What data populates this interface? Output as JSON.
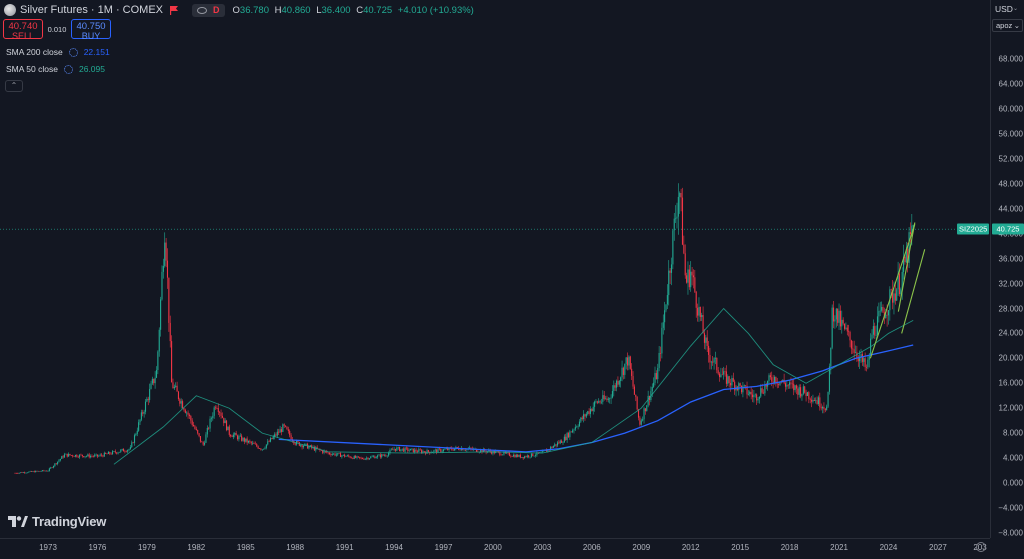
{
  "header": {
    "title": "Silver Futures · 1M · COMEX",
    "toggle_label": "D",
    "ohlc": [
      {
        "k": "O",
        "v": "36.780"
      },
      {
        "k": "H",
        "v": "40.860"
      },
      {
        "k": "L",
        "v": "36.400"
      },
      {
        "k": "C",
        "v": "40.725"
      },
      {
        "k": "",
        "v": "+4.010 (+10.93%)"
      }
    ]
  },
  "trade": {
    "sell_price": "40.740",
    "sell_label": "SELL",
    "spread": "0.010",
    "buy_price": "40.750",
    "buy_label": "BUY"
  },
  "indicators": [
    {
      "label": "SMA 200 close",
      "value": "22.151",
      "color": "#2962ff"
    },
    {
      "label": "SMA 50 close",
      "value": "26.095",
      "color": "#22ab94"
    }
  ],
  "price_axis": {
    "currency": "USD",
    "scale_select": "apoz",
    "ticks": [
      "68.000",
      "64.000",
      "60.000",
      "56.000",
      "52.000",
      "48.000",
      "44.000",
      "40.000",
      "36.000",
      "32.000",
      "28.000",
      "24.000",
      "20.000",
      "16.000",
      "12.000",
      "8.000",
      "4.000",
      "0.000",
      "−4.000",
      "−8.000"
    ],
    "symbol_tag": "SIZ2025",
    "last_price": "40.725"
  },
  "time_axis": {
    "labels": [
      "1973",
      "1976",
      "1979",
      "1982",
      "1985",
      "1988",
      "1991",
      "1994",
      "1997",
      "2000",
      "2003",
      "2006",
      "2009",
      "2012",
      "2015",
      "2018",
      "2021",
      "2024",
      "2027",
      "203"
    ]
  },
  "brand": {
    "name": "TradingView"
  },
  "colors": {
    "background": "#131722",
    "up": "#22ab94",
    "down": "#f23645",
    "sma200": "#2962ff",
    "sma50": "#22ab94",
    "trendline": "#8bc34a"
  },
  "chart_data": {
    "type": "line",
    "title": "",
    "ylim": [
      -10,
      72
    ],
    "xlim": [
      1971,
      2030
    ],
    "series": [
      {
        "name": "",
        "x": [
          1971,
          1973,
          1974,
          1976,
          1978,
          1979.6,
          1980.1,
          1980.5,
          1981.5,
          1982.4,
          1983.2,
          1984,
          1986,
          1987.3,
          1988,
          1990,
          1992,
          1993.5,
          1994,
          1996,
          1998,
          2000,
          2001.8,
          2003,
          2004.3,
          2006.3,
          2007,
          2008.2,
          2008.9,
          2010,
          2011.3,
          2011.7,
          2012,
          2013,
          2014,
          2015.9,
          2017,
          2018,
          2019,
          2020.3,
          2020.6,
          2021,
          2022.7,
          2023,
          2024,
          2024.8,
          2025.5
        ],
        "y": [
          1.6,
          2.0,
          4.5,
          4.3,
          5.5,
          18,
          42,
          16,
          11,
          6,
          13,
          8,
          5.5,
          9,
          6.5,
          4.8,
          3.9,
          4.5,
          5.5,
          5,
          5.6,
          5,
          4.2,
          4.8,
          7.0,
          13,
          13.5,
          20,
          9.5,
          18,
          48,
          32,
          34,
          21,
          17,
          13.8,
          17,
          15.5,
          14.5,
          12,
          28,
          26,
          18,
          24,
          29,
          33,
          40.725
        ]
      },
      {
        "name": "SMA 200 close",
        "x": [
          1987,
          2002,
          2004,
          2006,
          2008,
          2010,
          2012,
          2014,
          2016,
          2018,
          2020,
          2022,
          2024,
          2025.5
        ],
        "y": [
          7,
          5,
          5.5,
          6.5,
          8,
          10,
          13,
          15,
          15.5,
          16.5,
          18,
          20,
          21.2,
          22.151
        ]
      },
      {
        "name": "SMA 50 close",
        "x": [
          1977,
          1980,
          1982,
          1984,
          1986,
          1990,
          1995,
          2000,
          2003,
          2006,
          2009,
          2012,
          2014,
          2015.5,
          2017,
          2019,
          2021,
          2023,
          2024,
          2025.5
        ],
        "y": [
          3,
          9,
          14,
          12,
          8,
          5,
          4.8,
          5,
          4.8,
          6.5,
          12,
          22,
          28,
          24,
          19,
          16,
          19,
          22,
          24,
          26.095
        ]
      }
    ]
  }
}
